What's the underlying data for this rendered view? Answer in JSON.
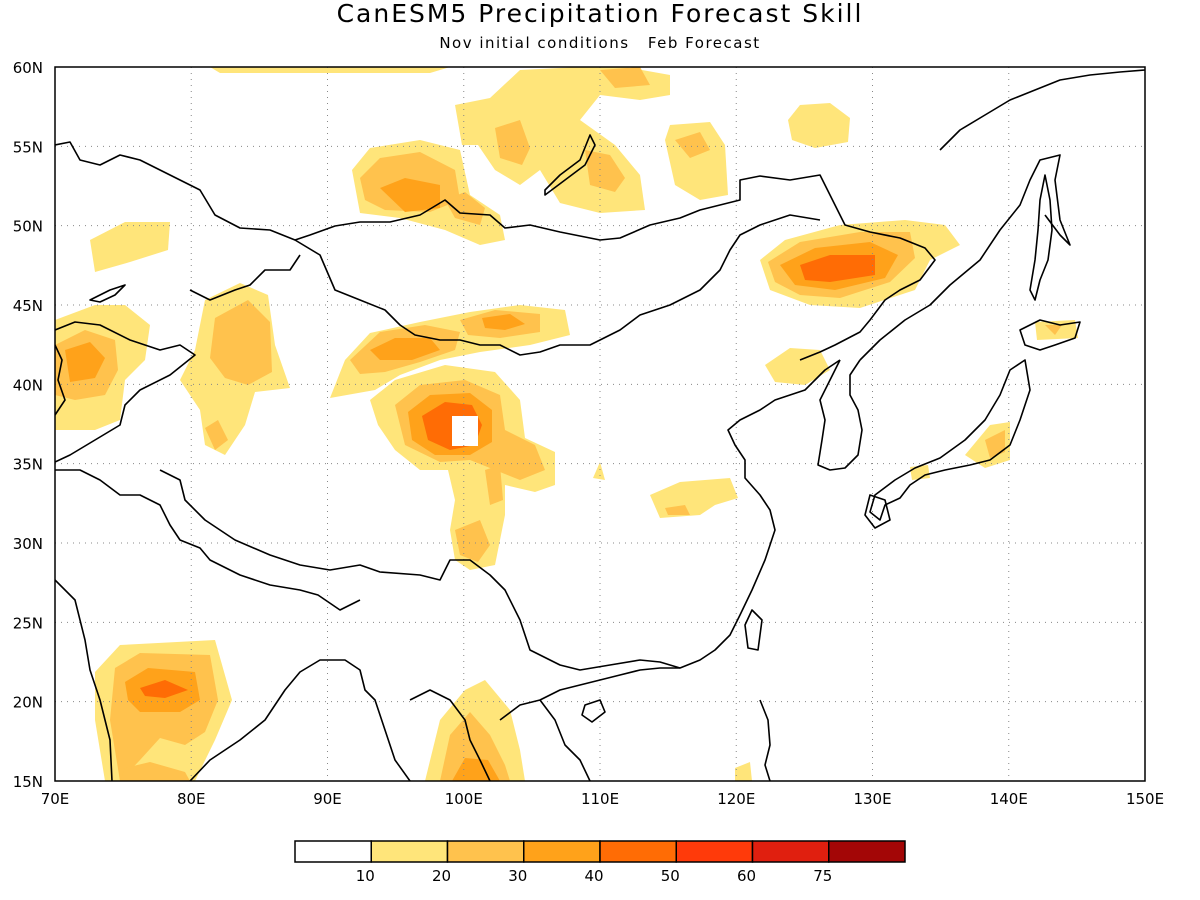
{
  "title": "CanESM5 Precipitation Forecast Skill",
  "subtitle": {
    "init": "Nov initial conditions",
    "target": "Feb Forecast"
  },
  "map": {
    "lon_range": [
      70,
      150
    ],
    "lat_range": [
      15,
      60
    ],
    "lon_ticks": [
      {
        "value": 70,
        "label": "70E"
      },
      {
        "value": 80,
        "label": "80E"
      },
      {
        "value": 90,
        "label": "90E"
      },
      {
        "value": 100,
        "label": "100E"
      },
      {
        "value": 110,
        "label": "110E"
      },
      {
        "value": 120,
        "label": "120E"
      },
      {
        "value": 130,
        "label": "130E"
      },
      {
        "value": 140,
        "label": "140E"
      },
      {
        "value": 150,
        "label": "150E"
      }
    ],
    "lat_ticks": [
      {
        "value": 15,
        "label": "15N"
      },
      {
        "value": 20,
        "label": "20N"
      },
      {
        "value": 25,
        "label": "25N"
      },
      {
        "value": 30,
        "label": "30N"
      },
      {
        "value": 35,
        "label": "35N"
      },
      {
        "value": 40,
        "label": "40N"
      },
      {
        "value": 45,
        "label": "45N"
      },
      {
        "value": 50,
        "label": "50N"
      },
      {
        "value": 55,
        "label": "55N"
      },
      {
        "value": 60,
        "label": "60N"
      }
    ],
    "grid": "dotted"
  },
  "chart_data": {
    "type": "heatmap",
    "colorbar": {
      "levels": [
        "10",
        "20",
        "30",
        "40",
        "50",
        "60",
        "75"
      ],
      "colors": [
        "#ffffff",
        "#ffe57a",
        "#ffc24d",
        "#ffa21a",
        "#ff6c05",
        "#ff3a0a",
        "#e01f0f",
        "#a30606"
      ]
    },
    "skill_regions": [
      {
        "lon": 78,
        "lat": 21,
        "peak": 50
      },
      {
        "lon": 84,
        "lat": 42.5,
        "peak": 30
      },
      {
        "lon": 73,
        "lat": 41,
        "peak": 30
      },
      {
        "lon": 76,
        "lat": 49,
        "peak": 10
      },
      {
        "lon": 96.5,
        "lat": 51.5,
        "peak": 30
      },
      {
        "lon": 105,
        "lat": 58,
        "peak": 20
      },
      {
        "lon": 109,
        "lat": 53,
        "peak": 20
      },
      {
        "lon": 115,
        "lat": 55,
        "peak": 20
      },
      {
        "lon": 123,
        "lat": 56.5,
        "peak": 10
      },
      {
        "lon": 127,
        "lat": 47.5,
        "peak": 50
      },
      {
        "lon": 97,
        "lat": 42,
        "peak": 40
      },
      {
        "lon": 103,
        "lat": 44,
        "peak": 30
      },
      {
        "lon": 99,
        "lat": 37,
        "peak": 50
      },
      {
        "lon": 100,
        "lat": 30,
        "peak": 30
      },
      {
        "lon": 100,
        "lat": 16,
        "peak": 30
      },
      {
        "lon": 114,
        "lat": 32.5,
        "peak": 20
      },
      {
        "lon": 124,
        "lat": 40.5,
        "peak": 10
      },
      {
        "lon": 139,
        "lat": 36,
        "peak": 20
      },
      {
        "lon": 143,
        "lat": 43.5,
        "peak": 10
      }
    ]
  }
}
